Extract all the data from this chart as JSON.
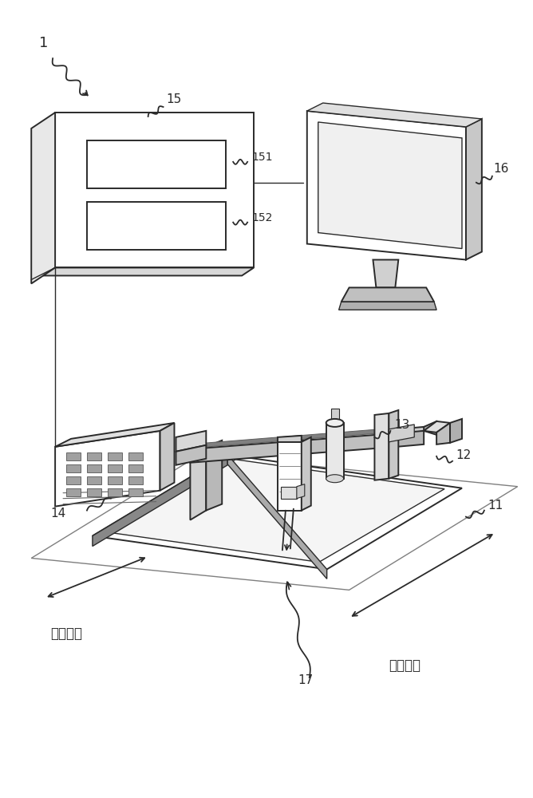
{
  "background_color": "#ffffff",
  "line_color": "#2a2a2a",
  "label_color": "#1a1a1a",
  "fig_width": 6.68,
  "fig_height": 10.0,
  "chinese_length": "长度方向",
  "chinese_width": "宽度方向"
}
